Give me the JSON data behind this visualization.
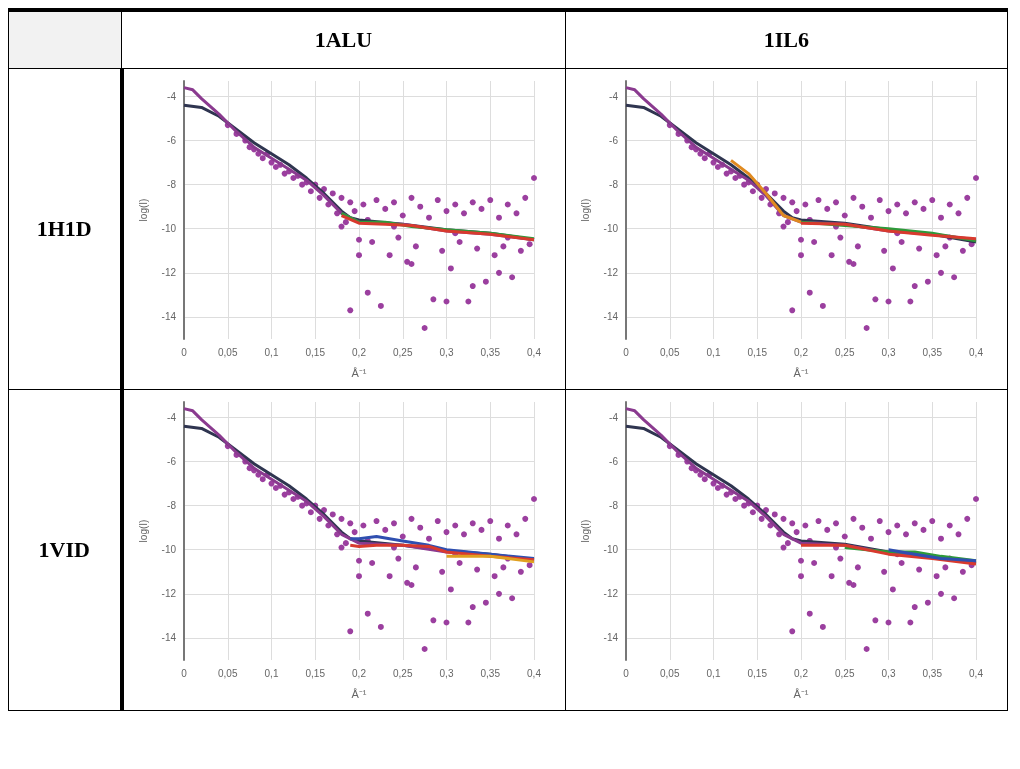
{
  "chart_data": [
    {
      "type": "scatter",
      "title": "1ALU",
      "annotations": [
        "1H1D"
      ],
      "xlabel": "Å⁻¹",
      "ylabel": "log(I)",
      "xlim": [
        0,
        0.4
      ],
      "ylim": [
        -15,
        -3.3
      ],
      "grid": true,
      "xticks": [
        {
          "value": 0,
          "label": "0"
        },
        {
          "value": 0.05,
          "label": "0,05"
        },
        {
          "value": 0.1,
          "label": "0,1"
        },
        {
          "value": 0.15,
          "label": "0,15"
        },
        {
          "value": 0.2,
          "label": "0,2"
        },
        {
          "value": 0.25,
          "label": "0,25"
        },
        {
          "value": 0.3,
          "label": "0,3"
        },
        {
          "value": 0.35,
          "label": "0,35"
        },
        {
          "value": 0.4,
          "label": "0,4"
        }
      ],
      "yticks": [
        -4,
        -6,
        -8,
        -10,
        -12,
        -14
      ],
      "series": [
        {
          "color": "#9b3f9f",
          "x": [
            0.05,
            0.06,
            0.07,
            0.075,
            0.08,
            0.085,
            0.09,
            0.095,
            0.1,
            0.105,
            0.11,
            0.115,
            0.12,
            0.125,
            0.13,
            0.135,
            0.14,
            0.145,
            0.15,
            0.155,
            0.16,
            0.165,
            0.17,
            0.175,
            0.18,
            0.185,
            0.19,
            0.195,
            0.2,
            0.205,
            0.21,
            0.215,
            0.22,
            0.225,
            0.23,
            0.235,
            0.24,
            0.245,
            0.25,
            0.255,
            0.26,
            0.265,
            0.27,
            0.275,
            0.28,
            0.285,
            0.29,
            0.295,
            0.3,
            0.305,
            0.31,
            0.315,
            0.32,
            0.325,
            0.33,
            0.335,
            0.34,
            0.345,
            0.35,
            0.355,
            0.36,
            0.365,
            0.37,
            0.375,
            0.38,
            0.385,
            0.39,
            0.395,
            0.4,
            0.19,
            0.21,
            0.3,
            0.33,
            0.2,
            0.26,
            0.36,
            0.24,
            0.31,
            0.37,
            0.18
          ],
          "values": [
            -5.3,
            -5.7,
            -6.0,
            -6.3,
            -6.4,
            -6.6,
            -6.8,
            -6.6,
            -7.0,
            -7.2,
            -7.1,
            -7.5,
            -7.4,
            -7.7,
            -7.6,
            -8.0,
            -7.9,
            -8.3,
            -8.0,
            -8.6,
            -8.2,
            -8.9,
            -8.4,
            -9.3,
            -8.6,
            -9.7,
            -8.8,
            -9.2,
            -10.5,
            -8.9,
            -9.6,
            -10.6,
            -8.7,
            -13.5,
            -9.1,
            -11.2,
            -8.8,
            -10.4,
            -9.4,
            -11.5,
            -8.6,
            -10.8,
            -9.0,
            -14.5,
            -9.5,
            -13.2,
            -8.7,
            -11.0,
            -9.2,
            -11.8,
            -8.9,
            -10.6,
            -9.3,
            -13.3,
            -8.8,
            -10.9,
            -9.1,
            -12.4,
            -8.7,
            -11.2,
            -9.5,
            -10.8,
            -8.9,
            -12.2,
            -9.3,
            -11.0,
            -8.6,
            -10.7,
            -7.7,
            -13.7,
            -12.9,
            -13.3,
            -12.6,
            -11.2,
            -11.6,
            -12.0,
            -9.9,
            -10.2,
            -10.4,
            -9.9
          ]
        },
        {
          "type": "line",
          "color": "#2f3550",
          "x": [
            0,
            0.02,
            0.04,
            0.06,
            0.08,
            0.1,
            0.12,
            0.14,
            0.16,
            0.18,
            0.19,
            0.2,
            0.25,
            0.3,
            0.35,
            0.4
          ],
          "values": [
            -4.4,
            -4.5,
            -4.9,
            -5.5,
            -6.1,
            -6.6,
            -7.1,
            -7.7,
            -8.4,
            -9.2,
            -9.5,
            -9.6,
            -9.8,
            -10.05,
            -10.2,
            -10.5
          ]
        },
        {
          "type": "line",
          "color": "#8a3a8f",
          "x": [
            0,
            0.01,
            0.02,
            0.04,
            0.06,
            0.08,
            0.1,
            0.12,
            0.14,
            0.16,
            0.18,
            0.2,
            0.25,
            0.3,
            0.35,
            0.4
          ],
          "values": [
            -3.6,
            -3.7,
            -4.1,
            -4.8,
            -5.6,
            -6.3,
            -6.8,
            -7.3,
            -7.8,
            -8.5,
            -9.3,
            -9.7,
            -9.8,
            -10.1,
            -10.25,
            -10.5
          ]
        },
        {
          "type": "line",
          "color": "#2e9a3a",
          "x": [
            0.18,
            0.2,
            0.23,
            0.26,
            0.3,
            0.35,
            0.4
          ],
          "values": [
            -9.3,
            -9.7,
            -9.7,
            -9.9,
            -10.05,
            -10.2,
            -10.45
          ]
        },
        {
          "type": "line",
          "color": "#d83a2e",
          "x": [
            0.18,
            0.2,
            0.23,
            0.26,
            0.3,
            0.35,
            0.4
          ],
          "values": [
            -9.4,
            -9.75,
            -9.8,
            -9.85,
            -10.1,
            -10.25,
            -10.5
          ]
        }
      ]
    },
    {
      "type": "scatter",
      "title": "1IL6",
      "xlabel": "Å⁻¹",
      "ylabel": "log(I)",
      "xlim": [
        0,
        0.4
      ],
      "ylim": [
        -15,
        -3.3
      ],
      "grid": true,
      "xticks": [
        {
          "value": 0,
          "label": "0"
        },
        {
          "value": 0.05,
          "label": "0,05"
        },
        {
          "value": 0.1,
          "label": "0,1"
        },
        {
          "value": 0.15,
          "label": "0,15"
        },
        {
          "value": 0.2,
          "label": "0,2"
        },
        {
          "value": 0.25,
          "label": "0,25"
        },
        {
          "value": 0.3,
          "label": "0,3"
        },
        {
          "value": 0.35,
          "label": "0,35"
        },
        {
          "value": 0.4,
          "label": "0,4"
        }
      ],
      "yticks": [
        -4,
        -6,
        -8,
        -10,
        -12,
        -14
      ],
      "series": [
        {
          "color": "#9b3f9f",
          "x": [
            0.05,
            0.06,
            0.07,
            0.075,
            0.08,
            0.085,
            0.09,
            0.095,
            0.1,
            0.105,
            0.11,
            0.115,
            0.12,
            0.125,
            0.13,
            0.135,
            0.14,
            0.145,
            0.15,
            0.155,
            0.16,
            0.165,
            0.17,
            0.175,
            0.18,
            0.185,
            0.19,
            0.195,
            0.2,
            0.205,
            0.21,
            0.215,
            0.22,
            0.225,
            0.23,
            0.235,
            0.24,
            0.245,
            0.25,
            0.255,
            0.26,
            0.265,
            0.27,
            0.275,
            0.28,
            0.285,
            0.29,
            0.295,
            0.3,
            0.305,
            0.31,
            0.315,
            0.32,
            0.325,
            0.33,
            0.335,
            0.34,
            0.345,
            0.35,
            0.355,
            0.36,
            0.365,
            0.37,
            0.375,
            0.38,
            0.385,
            0.39,
            0.395,
            0.4,
            0.19,
            0.21,
            0.3,
            0.33,
            0.2,
            0.26,
            0.36,
            0.24,
            0.31,
            0.37,
            0.18
          ],
          "values": [
            -5.3,
            -5.7,
            -6.0,
            -6.3,
            -6.4,
            -6.6,
            -6.8,
            -6.6,
            -7.0,
            -7.2,
            -7.1,
            -7.5,
            -7.4,
            -7.7,
            -7.6,
            -8.0,
            -7.9,
            -8.3,
            -8.0,
            -8.6,
            -8.2,
            -8.9,
            -8.4,
            -9.3,
            -8.6,
            -9.7,
            -8.8,
            -9.2,
            -10.5,
            -8.9,
            -9.6,
            -10.6,
            -8.7,
            -13.5,
            -9.1,
            -11.2,
            -8.8,
            -10.4,
            -9.4,
            -11.5,
            -8.6,
            -10.8,
            -9.0,
            -14.5,
            -9.5,
            -13.2,
            -8.7,
            -11.0,
            -9.2,
            -11.8,
            -8.9,
            -10.6,
            -9.3,
            -13.3,
            -8.8,
            -10.9,
            -9.1,
            -12.4,
            -8.7,
            -11.2,
            -9.5,
            -10.8,
            -8.9,
            -12.2,
            -9.3,
            -11.0,
            -8.6,
            -10.7,
            -7.7,
            -13.7,
            -12.9,
            -13.3,
            -12.6,
            -11.2,
            -11.6,
            -12.0,
            -9.9,
            -10.2,
            -10.4,
            -9.9
          ]
        },
        {
          "type": "line",
          "color": "#2f3550",
          "x": [
            0,
            0.02,
            0.04,
            0.06,
            0.08,
            0.1,
            0.12,
            0.14,
            0.16,
            0.18,
            0.19,
            0.2,
            0.25,
            0.3,
            0.35,
            0.4
          ],
          "values": [
            -4.4,
            -4.5,
            -4.9,
            -5.5,
            -6.1,
            -6.6,
            -7.1,
            -7.7,
            -8.4,
            -9.2,
            -9.5,
            -9.6,
            -9.75,
            -10.05,
            -10.25,
            -10.6
          ]
        },
        {
          "type": "line",
          "color": "#8a3a8f",
          "x": [
            0,
            0.01,
            0.02,
            0.04,
            0.06,
            0.08,
            0.1,
            0.12,
            0.14,
            0.16,
            0.18,
            0.2,
            0.25,
            0.3,
            0.35,
            0.4
          ],
          "values": [
            -3.6,
            -3.7,
            -4.1,
            -4.8,
            -5.6,
            -6.3,
            -6.8,
            -7.3,
            -7.8,
            -8.5,
            -9.4,
            -9.7,
            -9.8,
            -10.1,
            -10.25,
            -10.5
          ]
        },
        {
          "type": "line",
          "color": "#e08a20",
          "x": [
            0.12,
            0.14,
            0.16,
            0.18,
            0.2
          ],
          "values": [
            -6.9,
            -7.5,
            -8.4,
            -9.4,
            -9.7
          ]
        },
        {
          "type": "line",
          "color": "#2e9a3a",
          "x": [
            0.2,
            0.25,
            0.3,
            0.35,
            0.4
          ],
          "values": [
            -9.7,
            -9.85,
            -10.0,
            -10.2,
            -10.55
          ]
        },
        {
          "type": "line",
          "color": "#d83a2e",
          "x": [
            0.2,
            0.25,
            0.3,
            0.35,
            0.4
          ],
          "values": [
            -9.75,
            -9.8,
            -10.1,
            -10.3,
            -10.45
          ]
        }
      ]
    },
    {
      "type": "scatter",
      "annotations": [
        "1VID"
      ],
      "xlabel": "Å⁻¹",
      "ylabel": "log(I)",
      "xlim": [
        0,
        0.4
      ],
      "ylim": [
        -15,
        -3.3
      ],
      "grid": true,
      "xticks": [
        {
          "value": 0,
          "label": "0"
        },
        {
          "value": 0.05,
          "label": "0,05"
        },
        {
          "value": 0.1,
          "label": "0,1"
        },
        {
          "value": 0.15,
          "label": "0,15"
        },
        {
          "value": 0.2,
          "label": "0,2"
        },
        {
          "value": 0.25,
          "label": "0,25"
        },
        {
          "value": 0.3,
          "label": "0,3"
        },
        {
          "value": 0.35,
          "label": "0,35"
        },
        {
          "value": 0.4,
          "label": "0,4"
        }
      ],
      "yticks": [
        -4,
        -6,
        -8,
        -10,
        -12,
        -14
      ],
      "series": [
        {
          "color": "#9b3f9f",
          "x": [
            0.05,
            0.06,
            0.07,
            0.075,
            0.08,
            0.085,
            0.09,
            0.095,
            0.1,
            0.105,
            0.11,
            0.115,
            0.12,
            0.125,
            0.13,
            0.135,
            0.14,
            0.145,
            0.15,
            0.155,
            0.16,
            0.165,
            0.17,
            0.175,
            0.18,
            0.185,
            0.19,
            0.195,
            0.2,
            0.205,
            0.21,
            0.215,
            0.22,
            0.225,
            0.23,
            0.235,
            0.24,
            0.245,
            0.25,
            0.255,
            0.26,
            0.265,
            0.27,
            0.275,
            0.28,
            0.285,
            0.29,
            0.295,
            0.3,
            0.305,
            0.31,
            0.315,
            0.32,
            0.325,
            0.33,
            0.335,
            0.34,
            0.345,
            0.35,
            0.355,
            0.36,
            0.365,
            0.37,
            0.375,
            0.38,
            0.385,
            0.39,
            0.395,
            0.4,
            0.19,
            0.21,
            0.3,
            0.33,
            0.2,
            0.26,
            0.36,
            0.24,
            0.31,
            0.37,
            0.18
          ],
          "values": [
            -5.3,
            -5.7,
            -6.0,
            -6.3,
            -6.4,
            -6.6,
            -6.8,
            -6.6,
            -7.0,
            -7.2,
            -7.1,
            -7.5,
            -7.4,
            -7.7,
            -7.6,
            -8.0,
            -7.9,
            -8.3,
            -8.0,
            -8.6,
            -8.2,
            -8.9,
            -8.4,
            -9.3,
            -8.6,
            -9.7,
            -8.8,
            -9.2,
            -10.5,
            -8.9,
            -9.6,
            -10.6,
            -8.7,
            -13.5,
            -9.1,
            -11.2,
            -8.8,
            -10.4,
            -9.4,
            -11.5,
            -8.6,
            -10.8,
            -9.0,
            -14.5,
            -9.5,
            -13.2,
            -8.7,
            -11.0,
            -9.2,
            -11.8,
            -8.9,
            -10.6,
            -9.3,
            -13.3,
            -8.8,
            -10.9,
            -9.1,
            -12.4,
            -8.7,
            -11.2,
            -9.5,
            -10.8,
            -8.9,
            -12.2,
            -9.3,
            -11.0,
            -8.6,
            -10.7,
            -7.7,
            -13.7,
            -12.9,
            -13.3,
            -12.6,
            -11.2,
            -11.6,
            -12.0,
            -9.9,
            -10.2,
            -10.4,
            -9.9
          ]
        },
        {
          "type": "line",
          "color": "#2f3550",
          "x": [
            0,
            0.02,
            0.04,
            0.06,
            0.08,
            0.1,
            0.12,
            0.14,
            0.16,
            0.18,
            0.19,
            0.2,
            0.25,
            0.3,
            0.35,
            0.4
          ],
          "values": [
            -4.4,
            -4.5,
            -4.9,
            -5.5,
            -6.1,
            -6.6,
            -7.1,
            -7.7,
            -8.4,
            -9.2,
            -9.5,
            -9.6,
            -9.8,
            -10.05,
            -10.2,
            -10.45
          ]
        },
        {
          "type": "line",
          "color": "#8a3a8f",
          "x": [
            0,
            0.01,
            0.02,
            0.04,
            0.06,
            0.08,
            0.1,
            0.12,
            0.14,
            0.16,
            0.18,
            0.2,
            0.25,
            0.3,
            0.35,
            0.4
          ],
          "values": [
            -3.6,
            -3.7,
            -4.1,
            -4.8,
            -5.6,
            -6.3,
            -6.8,
            -7.3,
            -7.8,
            -8.5,
            -9.3,
            -9.7,
            -9.8,
            -10.1,
            -10.25,
            -10.5
          ]
        },
        {
          "type": "line",
          "color": "#2f4fb0",
          "x": [
            0.19,
            0.2,
            0.22,
            0.25,
            0.28,
            0.3,
            0.35,
            0.4
          ],
          "values": [
            -9.5,
            -9.5,
            -9.4,
            -9.6,
            -9.8,
            -10.0,
            -10.2,
            -10.4
          ]
        },
        {
          "type": "line",
          "color": "#d83a2e",
          "x": [
            0.19,
            0.2,
            0.22,
            0.25,
            0.28,
            0.3,
            0.35,
            0.4
          ],
          "values": [
            -9.8,
            -9.85,
            -9.8,
            -9.8,
            -9.85,
            -10.1,
            -10.3,
            -10.45
          ]
        },
        {
          "type": "line",
          "color": "#e0a020",
          "x": [
            0.3,
            0.35,
            0.4
          ],
          "values": [
            -10.3,
            -10.3,
            -10.55
          ]
        }
      ]
    },
    {
      "type": "scatter",
      "xlabel": "Å⁻¹",
      "ylabel": "log(I)",
      "xlim": [
        0,
        0.4
      ],
      "ylim": [
        -15,
        -3.3
      ],
      "grid": true,
      "xticks": [
        {
          "value": 0,
          "label": "0"
        },
        {
          "value": 0.05,
          "label": "0,05"
        },
        {
          "value": 0.1,
          "label": "0,1"
        },
        {
          "value": 0.15,
          "label": "0,15"
        },
        {
          "value": 0.2,
          "label": "0,2"
        },
        {
          "value": 0.25,
          "label": "0,25"
        },
        {
          "value": 0.3,
          "label": "0,3"
        },
        {
          "value": 0.35,
          "label": "0,35"
        },
        {
          "value": 0.4,
          "label": "0,4"
        }
      ],
      "yticks": [
        -4,
        -6,
        -8,
        -10,
        -12,
        -14
      ],
      "series": [
        {
          "color": "#9b3f9f",
          "x": [
            0.05,
            0.06,
            0.07,
            0.075,
            0.08,
            0.085,
            0.09,
            0.095,
            0.1,
            0.105,
            0.11,
            0.115,
            0.12,
            0.125,
            0.13,
            0.135,
            0.14,
            0.145,
            0.15,
            0.155,
            0.16,
            0.165,
            0.17,
            0.175,
            0.18,
            0.185,
            0.19,
            0.195,
            0.2,
            0.205,
            0.21,
            0.215,
            0.22,
            0.225,
            0.23,
            0.235,
            0.24,
            0.245,
            0.25,
            0.255,
            0.26,
            0.265,
            0.27,
            0.275,
            0.28,
            0.285,
            0.29,
            0.295,
            0.3,
            0.305,
            0.31,
            0.315,
            0.32,
            0.325,
            0.33,
            0.335,
            0.34,
            0.345,
            0.35,
            0.355,
            0.36,
            0.365,
            0.37,
            0.375,
            0.38,
            0.385,
            0.39,
            0.395,
            0.4,
            0.19,
            0.21,
            0.3,
            0.33,
            0.2,
            0.26,
            0.36,
            0.24,
            0.31,
            0.37,
            0.18
          ],
          "values": [
            -5.3,
            -5.7,
            -6.0,
            -6.3,
            -6.4,
            -6.6,
            -6.8,
            -6.6,
            -7.0,
            -7.2,
            -7.1,
            -7.5,
            -7.4,
            -7.7,
            -7.6,
            -8.0,
            -7.9,
            -8.3,
            -8.0,
            -8.6,
            -8.2,
            -8.9,
            -8.4,
            -9.3,
            -8.6,
            -9.7,
            -8.8,
            -9.2,
            -10.5,
            -8.9,
            -9.6,
            -10.6,
            -8.7,
            -13.5,
            -9.1,
            -11.2,
            -8.8,
            -10.4,
            -9.4,
            -11.5,
            -8.6,
            -10.8,
            -9.0,
            -14.5,
            -9.5,
            -13.2,
            -8.7,
            -11.0,
            -9.2,
            -11.8,
            -8.9,
            -10.6,
            -9.3,
            -13.3,
            -8.8,
            -10.9,
            -9.1,
            -12.4,
            -8.7,
            -11.2,
            -9.5,
            -10.8,
            -8.9,
            -12.2,
            -9.3,
            -11.0,
            -8.6,
            -10.7,
            -7.7,
            -13.7,
            -12.9,
            -13.3,
            -12.6,
            -11.2,
            -11.6,
            -12.0,
            -9.9,
            -10.2,
            -10.4,
            -9.9
          ]
        },
        {
          "type": "line",
          "color": "#2f3550",
          "x": [
            0,
            0.02,
            0.04,
            0.06,
            0.08,
            0.1,
            0.12,
            0.14,
            0.16,
            0.18,
            0.19,
            0.2,
            0.25,
            0.3,
            0.35,
            0.4
          ],
          "values": [
            -4.4,
            -4.5,
            -4.9,
            -5.5,
            -6.1,
            -6.6,
            -7.1,
            -7.7,
            -8.4,
            -9.2,
            -9.5,
            -9.6,
            -9.75,
            -10.1,
            -10.3,
            -10.6
          ]
        },
        {
          "type": "line",
          "color": "#8a3a8f",
          "x": [
            0,
            0.01,
            0.02,
            0.04,
            0.06,
            0.08,
            0.1,
            0.12,
            0.14,
            0.16,
            0.18,
            0.2,
            0.25,
            0.3,
            0.35,
            0.4
          ],
          "values": [
            -3.6,
            -3.7,
            -4.1,
            -4.8,
            -5.6,
            -6.3,
            -6.8,
            -7.3,
            -7.8,
            -8.5,
            -9.3,
            -9.7,
            -9.8,
            -10.15,
            -10.35,
            -10.55
          ]
        },
        {
          "type": "line",
          "color": "#2e9a3a",
          "x": [
            0.25,
            0.3,
            0.33,
            0.36,
            0.4
          ],
          "values": [
            -9.9,
            -10.1,
            -10.1,
            -10.3,
            -10.5
          ]
        },
        {
          "type": "line",
          "color": "#d83a2e",
          "x": [
            0.2,
            0.25,
            0.3,
            0.35,
            0.4
          ],
          "values": [
            -9.8,
            -9.8,
            -10.2,
            -10.4,
            -10.65
          ]
        },
        {
          "type": "line",
          "color": "#2f4fb0",
          "x": [
            0.3,
            0.33,
            0.36,
            0.4
          ],
          "values": [
            -10.0,
            -10.2,
            -10.4,
            -10.5
          ]
        }
      ]
    }
  ]
}
